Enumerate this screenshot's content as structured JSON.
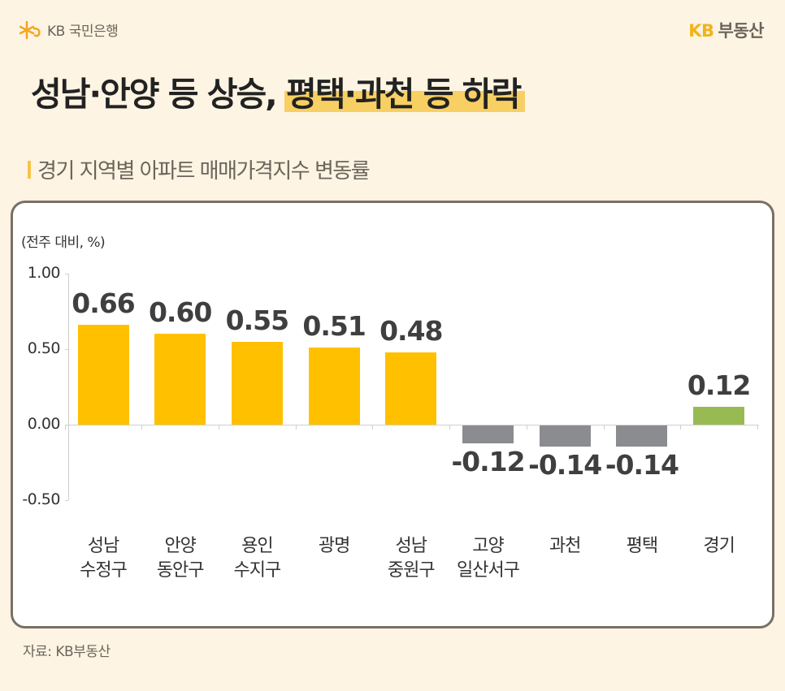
{
  "header": {
    "bank_logo_text": "KB 국민은행",
    "brand_kb": "KB",
    "brand_rest": "부동산"
  },
  "title": {
    "part1": "성남·안양 등 상승,",
    "part2_highlighted": "평택·과천 등 하락"
  },
  "subtitle": "경기 지역별 아파트 매매가격지수 변동률",
  "colors": {
    "background": "#fdf4e3",
    "positive_bar": "#ffc000",
    "negative_bar": "#8a8c8f",
    "total_bar": "#97bb52",
    "highlight": "#f8cf62",
    "card_border": "#7a7065"
  },
  "chart_data": {
    "type": "bar",
    "title": "경기 지역별 아파트 매매가격지수 변동률",
    "ylabel": "(전주 대비, %)",
    "xlabel": "",
    "ylim": [
      -0.5,
      1.0
    ],
    "yticks": [
      "1.00",
      "0.50",
      "0.00",
      "-0.50"
    ],
    "grid": false,
    "legend": null,
    "categories": [
      "성남 수정구",
      "안양 동안구",
      "용인 수지구",
      "광명",
      "성남 중원구",
      "고양 일산서구",
      "과천",
      "평택",
      "경기"
    ],
    "category_lines": [
      [
        "성남",
        "수정구"
      ],
      [
        "안양",
        "동안구"
      ],
      [
        "용인",
        "수지구"
      ],
      [
        "광명",
        ""
      ],
      [
        "성남",
        "중원구"
      ],
      [
        "고양",
        "일산서구"
      ],
      [
        "과천",
        ""
      ],
      [
        "평택",
        ""
      ],
      [
        "경기",
        ""
      ]
    ],
    "values": [
      0.66,
      0.6,
      0.55,
      0.51,
      0.48,
      -0.12,
      -0.14,
      -0.14,
      0.12
    ],
    "value_labels": [
      "0.66",
      "0.60",
      "0.55",
      "0.51",
      "0.48",
      "-0.12",
      "-0.14",
      "-0.14",
      "0.12"
    ],
    "bar_colors": [
      "#ffc000",
      "#ffc000",
      "#ffc000",
      "#ffc000",
      "#ffc000",
      "#8a8c8f",
      "#8a8c8f",
      "#8a8c8f",
      "#97bb52"
    ]
  },
  "source": "자료: KB부동산"
}
